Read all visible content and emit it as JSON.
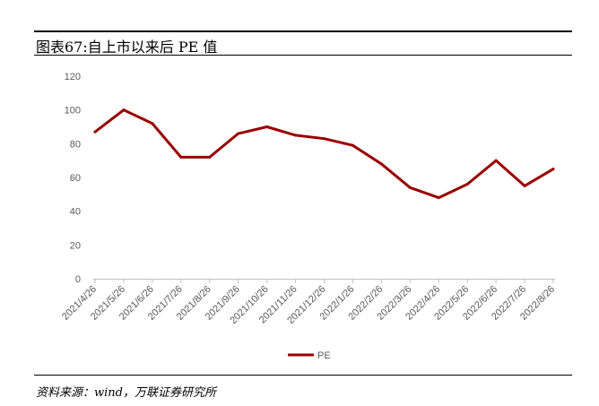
{
  "title": "图表67:自上市以来后 PE 值",
  "source": "资料来源：wind，万联证券研究所",
  "chart_data": {
    "type": "line",
    "categories": [
      "2021/4/26",
      "2021/5/26",
      "2021/6/26",
      "2021/7/26",
      "2021/8/26",
      "2021/9/26",
      "2021/10/26",
      "2021/11/26",
      "2021/12/26",
      "2022/1/26",
      "2022/2/26",
      "2022/3/26",
      "2022/4/26",
      "2022/5/26",
      "2022/6/26",
      "2022/7/26",
      "2022/8/26"
    ],
    "series": [
      {
        "name": "PE",
        "color": "#990000",
        "values": [
          87,
          100,
          92,
          72,
          72,
          86,
          90,
          85,
          83,
          79,
          68,
          54,
          48,
          56,
          70,
          55,
          65
        ]
      }
    ],
    "ylim": [
      0,
      120
    ],
    "yticks": [
      0,
      20,
      40,
      60,
      80,
      100,
      120
    ],
    "xlabel": "",
    "ylabel": "",
    "grid": false,
    "legend_position": "bottom-center"
  }
}
